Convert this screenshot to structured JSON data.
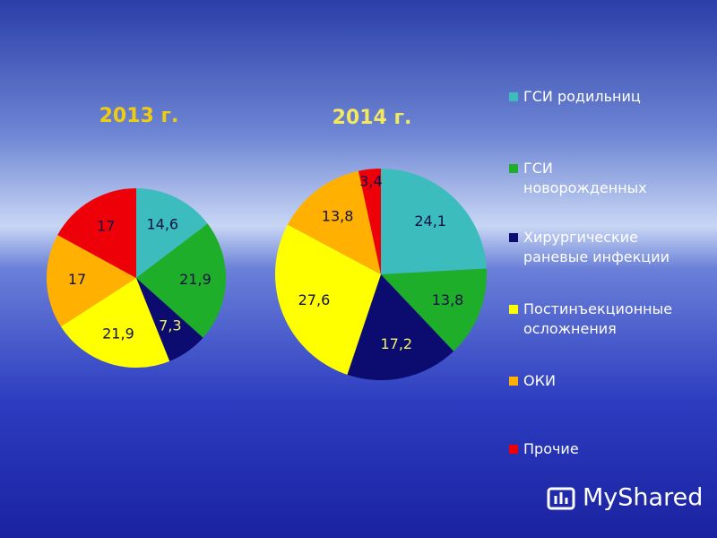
{
  "chart_data": [
    {
      "type": "pie",
      "title": "2013 г.",
      "categories": [
        "ГСИ родильниц",
        "ГСИ новорожденных",
        "Хирургические раневые инфекции",
        "Постинъекционные осложнения",
        "ОКИ",
        "Прочие"
      ],
      "colors": [
        "#3cbcbc",
        "#1fae2a",
        "#0c0c70",
        "#ffff00",
        "#ffb000",
        "#ee0008"
      ],
      "values": [
        14.6,
        21.9,
        7.3,
        21.9,
        17,
        17
      ],
      "value_labels": [
        "14,6",
        "21,9",
        "7,3",
        "21,9",
        "17",
        "17"
      ]
    },
    {
      "type": "pie",
      "title": "2014 г.",
      "values": [
        24.1,
        13.8,
        17.2,
        27.6,
        13.8,
        3.4
      ],
      "value_labels": [
        "24,1",
        "13,8",
        "17,2",
        "27,6",
        "13,8",
        "3,4"
      ]
    }
  ],
  "watermark": "MyShared"
}
